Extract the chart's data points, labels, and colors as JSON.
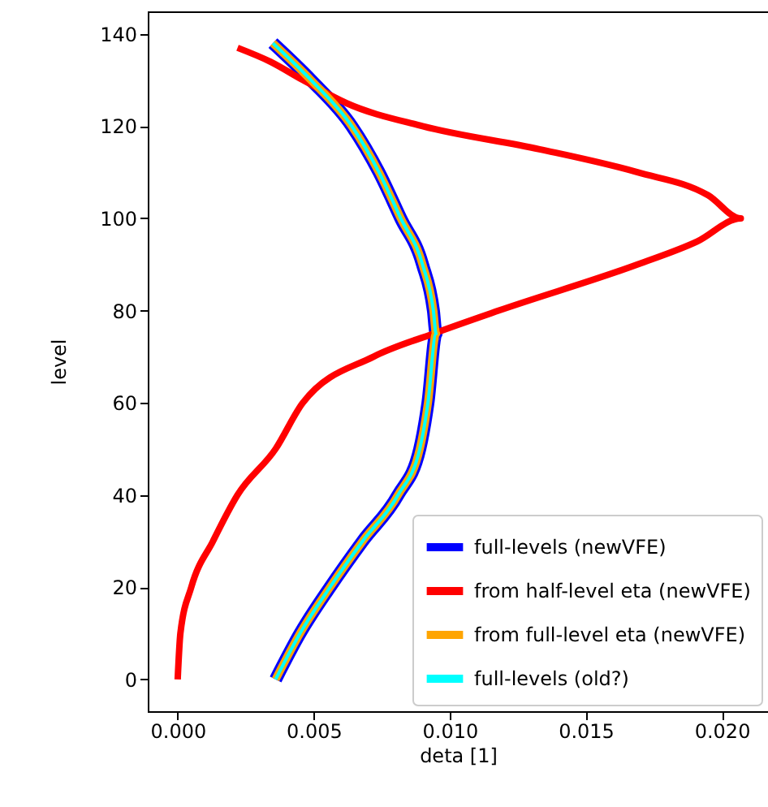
{
  "chart_data": {
    "type": "line",
    "xlabel": "deta [1]",
    "ylabel": "level",
    "xlim": [
      -0.0011,
      0.0217
    ],
    "ylim": [
      -6.9,
      144.9
    ],
    "xticks": [
      {
        "value": 0,
        "label": "0.000"
      },
      {
        "value": 0.005,
        "label": "0.005"
      },
      {
        "value": 0.01,
        "label": "0.010"
      },
      {
        "value": 0.015,
        "label": "0.015"
      },
      {
        "value": 0.02,
        "label": "0.020"
      }
    ],
    "yticks": [
      0,
      20,
      40,
      60,
      80,
      100,
      120,
      140
    ],
    "grid": false,
    "legend": "bottom right",
    "line_style": "solid",
    "marker": "none",
    "series": [
      {
        "name": "full-levels (newVFE)",
        "color": "#0000ff",
        "x": [
          0.0036,
          0.0045,
          0.0056,
          0.0068,
          0.0081,
          0.0089,
          0.0092,
          0.0095,
          0.0094,
          0.009,
          0.0082,
          0.0074,
          0.0064,
          0.0049,
          0.0035
        ],
        "values": [
          0,
          10,
          20,
          30,
          40,
          50,
          60,
          75,
          80,
          90,
          100,
          110,
          120,
          130,
          138
        ]
      },
      {
        "name": "from half-level eta (newVFE)",
        "color": "#ff0000",
        "x": [
          0.0,
          0.0001,
          0.0005,
          0.0013,
          0.0022,
          0.0036,
          0.0046,
          0.0072,
          0.0094,
          0.0118,
          0.0169,
          0.0191,
          0.0207,
          0.0195,
          0.0169,
          0.0133,
          0.009,
          0.0062,
          0.0046,
          0.0034,
          0.0022
        ],
        "values": [
          0,
          10,
          20,
          30,
          40,
          50,
          60,
          70,
          75,
          80,
          90,
          95,
          100,
          105,
          110,
          115,
          120,
          125,
          130,
          134,
          137
        ]
      },
      {
        "name": "from full-level eta (newVFE)",
        "color": "#ffa500",
        "x": [
          0.0036,
          0.0045,
          0.0056,
          0.0068,
          0.0081,
          0.0089,
          0.0092,
          0.0095,
          0.0094,
          0.009,
          0.0082,
          0.0074,
          0.0064,
          0.0049,
          0.0035
        ],
        "values": [
          0,
          10,
          20,
          30,
          40,
          50,
          60,
          75,
          80,
          90,
          100,
          110,
          120,
          130,
          138
        ]
      },
      {
        "name": "full-levels (old?)",
        "color": "#00ffff",
        "x": [
          0.0036,
          0.0045,
          0.0056,
          0.0068,
          0.0081,
          0.0089,
          0.0092,
          0.0095,
          0.0094,
          0.009,
          0.0082,
          0.0074,
          0.0064,
          0.0049,
          0.0035
        ],
        "values": [
          0,
          10,
          20,
          30,
          40,
          50,
          60,
          75,
          80,
          90,
          100,
          110,
          120,
          130,
          138
        ]
      }
    ]
  }
}
